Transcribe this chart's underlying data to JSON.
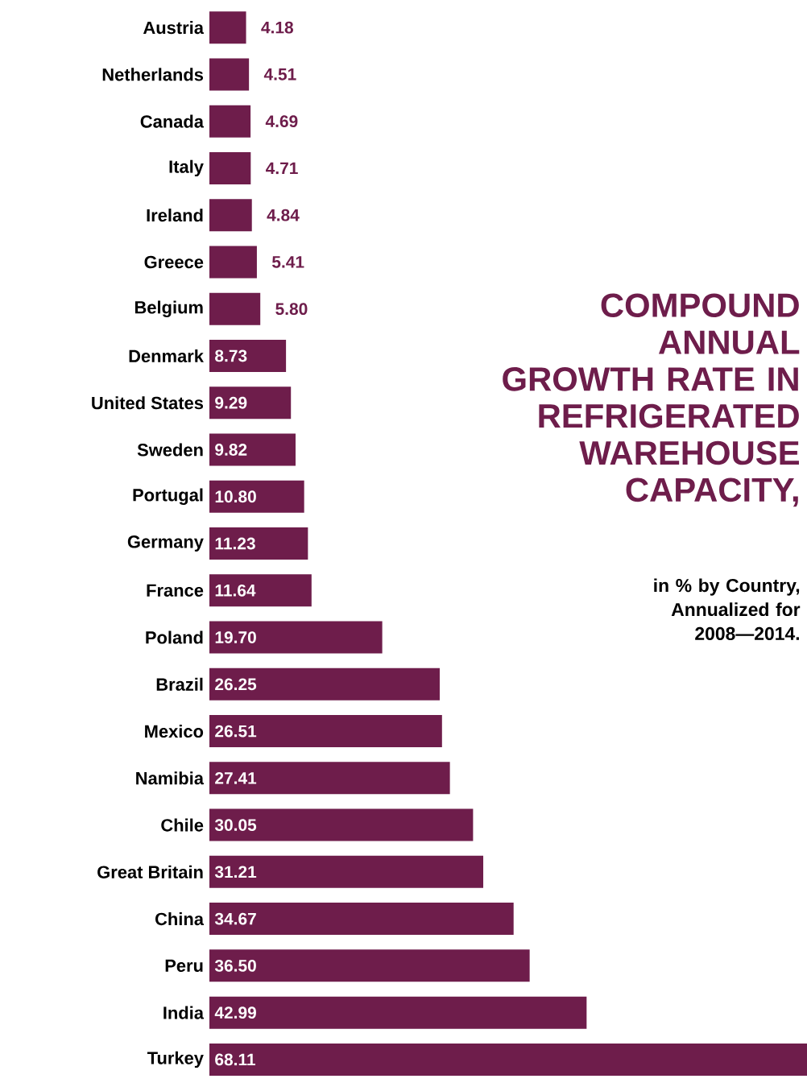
{
  "chart_data": {
    "type": "bar",
    "orientation": "horizontal",
    "title": "COMPOUND ANNUAL GROWTH RATE IN REFRIGERATED WAREHOUSE CAPACITY,",
    "subtitle": "in % by Country, Annualized for 2008—2014.",
    "categories": [
      "Austria",
      "Netherlands",
      "Canada",
      "Italy",
      "Ireland",
      "Greece",
      "Belgium",
      "Denmark",
      "United States",
      "Sweden",
      "Portugal",
      "Germany",
      "France",
      "Poland",
      "Brazil",
      "Mexico",
      "Namibia",
      "Chile",
      "Great Britain",
      "China",
      "Peru",
      "India",
      "Turkey"
    ],
    "values": [
      4.18,
      4.51,
      4.69,
      4.71,
      4.84,
      5.41,
      5.8,
      8.73,
      9.29,
      9.82,
      10.8,
      11.23,
      11.64,
      19.7,
      26.25,
      26.51,
      27.41,
      30.05,
      31.21,
      34.67,
      36.5,
      42.99,
      68.11
    ],
    "value_labels": [
      "4.18",
      "4.51",
      "4.69",
      "4.71",
      "4.84",
      "5.41",
      "5.80",
      "8.73",
      "9.29",
      "9.82",
      "10.80",
      "11.23",
      "11.64",
      "19.70",
      "26.25",
      "26.51",
      "27.41",
      "30.05",
      "31.21",
      "34.67",
      "36.50",
      "42.99",
      "68.11"
    ],
    "color": "#6e1d4b",
    "tick_labels": "y"
  }
}
